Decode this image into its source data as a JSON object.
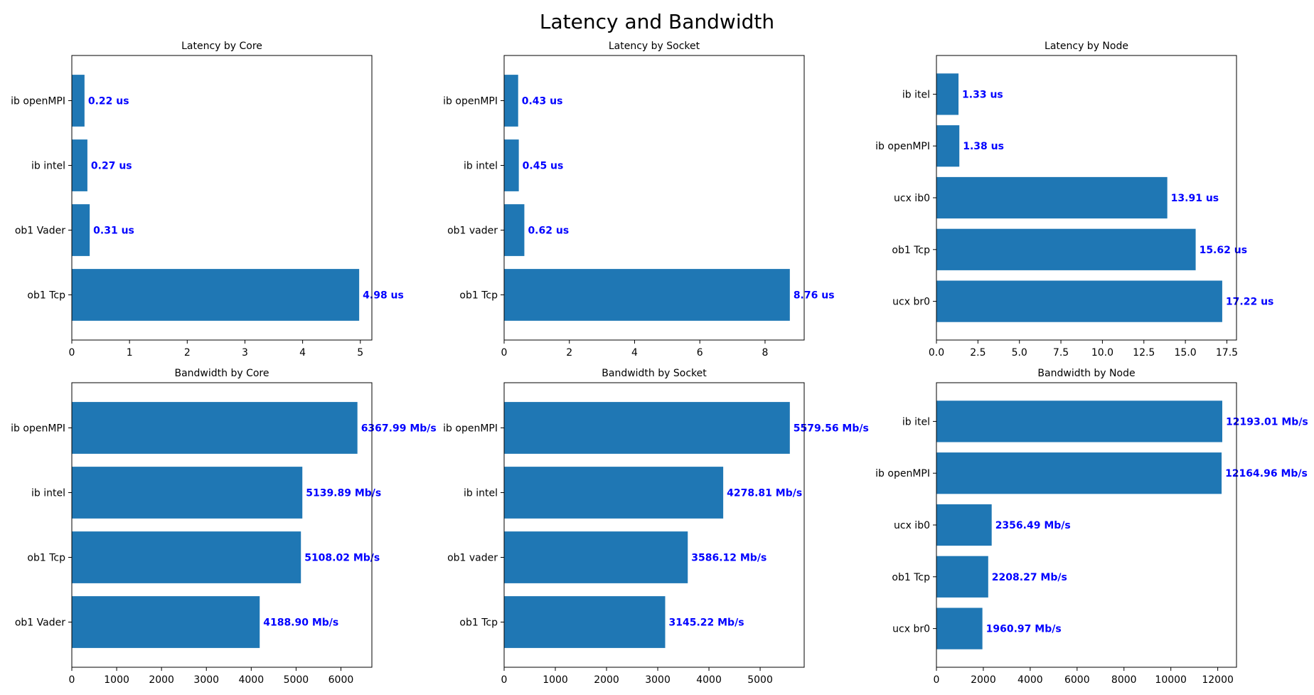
{
  "figure": {
    "title": "Latency and Bandwidth"
  },
  "chart_data": [
    {
      "type": "bar",
      "orientation": "horizontal",
      "title": "Latency by Core",
      "categories": [
        "ib openMPI",
        "ib intel",
        "ob1 Vader",
        "ob1 Tcp"
      ],
      "values": [
        0.22,
        0.27,
        0.31,
        4.98
      ],
      "labels": [
        "0.22 us",
        "0.27 us",
        "0.31 us",
        "4.98 us"
      ],
      "xlim": [
        0,
        5.2
      ],
      "xticks": [
        0,
        1,
        2,
        3,
        4,
        5
      ],
      "xtick_labels": [
        "0",
        "1",
        "2",
        "3",
        "4",
        "5"
      ]
    },
    {
      "type": "bar",
      "orientation": "horizontal",
      "title": "Latency by Socket",
      "categories": [
        "ib openMPI",
        "ib intel",
        "ob1 vader",
        "ob1 Tcp"
      ],
      "values": [
        0.43,
        0.45,
        0.62,
        8.76
      ],
      "labels": [
        "0.43 us",
        "0.45 us",
        "0.62 us",
        "8.76 us"
      ],
      "xlim": [
        0,
        9.2
      ],
      "xticks": [
        0,
        2,
        4,
        6,
        8
      ],
      "xtick_labels": [
        "0",
        "2",
        "4",
        "6",
        "8"
      ]
    },
    {
      "type": "bar",
      "orientation": "horizontal",
      "title": "Latency by  Node",
      "categories": [
        "ib itel",
        "ib openMPI",
        "ucx ib0",
        "ob1 Tcp",
        "ucx br0"
      ],
      "values": [
        1.33,
        1.38,
        13.91,
        15.62,
        17.22
      ],
      "labels": [
        "1.33 us",
        "1.38 us",
        "13.91 us",
        "15.62 us",
        "17.22 us"
      ],
      "xlim": [
        0,
        18.08
      ],
      "xticks": [
        0,
        2.5,
        5,
        7.5,
        10,
        12.5,
        15,
        17.5
      ],
      "xtick_labels": [
        "0.0",
        "2.5",
        "5.0",
        "7.5",
        "10.0",
        "12.5",
        "15.0",
        "17.5"
      ]
    },
    {
      "type": "bar",
      "orientation": "horizontal",
      "title": "Bandwidth by Core",
      "categories": [
        "ib openMPI",
        "ib intel",
        "ob1 Tcp",
        "ob1 Vader"
      ],
      "values": [
        6367.99,
        5139.89,
        5108.02,
        4188.9
      ],
      "labels": [
        "6367.99 Mb/s",
        "5139.89 Mb/s",
        "5108.02 Mb/s",
        "4188.90 Mb/s"
      ],
      "xlim": [
        0,
        6690
      ],
      "xticks": [
        0,
        1000,
        2000,
        3000,
        4000,
        5000,
        6000
      ],
      "xtick_labels": [
        "0",
        "1000",
        "2000",
        "3000",
        "4000",
        "5000",
        "6000"
      ]
    },
    {
      "type": "bar",
      "orientation": "horizontal",
      "title": "Bandwidth by Socket",
      "categories": [
        "ib openMPI",
        "ib intel",
        "ob1 vader",
        "ob1 Tcp"
      ],
      "values": [
        5579.56,
        4278.81,
        3586.12,
        3145.22
      ],
      "labels": [
        "5579.56 Mb/s",
        "4278.81 Mb/s",
        "3586.12 Mb/s",
        "3145.22 Mb/s"
      ],
      "xlim": [
        0,
        5860
      ],
      "xticks": [
        0,
        1000,
        2000,
        3000,
        4000,
        5000
      ],
      "xtick_labels": [
        "0",
        "1000",
        "2000",
        "3000",
        "4000",
        "5000"
      ]
    },
    {
      "type": "bar",
      "orientation": "horizontal",
      "title": "Bandwidth by Node",
      "categories": [
        "ib itel",
        "ib openMPI",
        "ucx ib0",
        "ob1 Tcp",
        "ucx br0"
      ],
      "values": [
        12193.01,
        12164.96,
        2356.49,
        2208.27,
        1960.97
      ],
      "labels": [
        "12193.01 Mb/s",
        "12164.96 Mb/s",
        "2356.49 Mb/s",
        "2208.27 Mb/s",
        "1960.97 Mb/s"
      ],
      "xlim": [
        0,
        12800
      ],
      "xticks": [
        0,
        2000,
        4000,
        6000,
        8000,
        10000,
        12000
      ],
      "xtick_labels": [
        "0",
        "2000",
        "4000",
        "6000",
        "8000",
        "10000",
        "12000"
      ]
    }
  ],
  "colors": {
    "bar": "#1f77b4",
    "label": "#0000ff",
    "axis": "#000000"
  }
}
